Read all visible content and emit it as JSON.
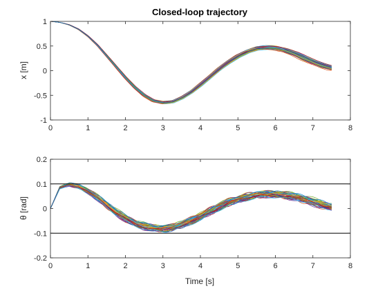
{
  "chart_data": [
    {
      "type": "line",
      "title": "Closed-loop trajectory",
      "xlabel": "",
      "ylabel": "x [m]",
      "xlim": [
        0,
        8
      ],
      "ylim": [
        -1,
        1
      ],
      "xticks": [
        0,
        1,
        2,
        3,
        4,
        5,
        6,
        7,
        8
      ],
      "yticks": [
        -1,
        -0.5,
        0,
        0.5,
        1
      ],
      "ytick_labels": [
        "-1",
        "-0.5",
        "0",
        "0.5",
        "1"
      ],
      "grid": false,
      "legend": "none",
      "ensemble": {
        "runs": 50,
        "x": [
          0,
          0.25,
          0.5,
          0.75,
          1,
          1.25,
          1.5,
          1.75,
          2,
          2.25,
          2.5,
          2.75,
          3,
          3.25,
          3.5,
          3.75,
          4,
          4.25,
          4.5,
          4.75,
          5,
          5.25,
          5.5,
          5.75,
          6,
          6.25,
          6.5,
          6.75,
          7,
          7.25,
          7.5
        ],
        "mean": [
          1.0,
          0.98,
          0.93,
          0.84,
          0.7,
          0.52,
          0.3,
          0.08,
          -0.14,
          -0.34,
          -0.5,
          -0.61,
          -0.65,
          -0.63,
          -0.55,
          -0.43,
          -0.28,
          -0.12,
          0.04,
          0.18,
          0.3,
          0.39,
          0.45,
          0.47,
          0.46,
          0.42,
          0.35,
          0.26,
          0.18,
          0.11,
          0.05
        ],
        "spread": [
          0.0,
          0.0,
          0.005,
          0.008,
          0.01,
          0.012,
          0.015,
          0.018,
          0.02,
          0.022,
          0.025,
          0.028,
          0.03,
          0.03,
          0.03,
          0.03,
          0.03,
          0.03,
          0.03,
          0.035,
          0.035,
          0.04,
          0.04,
          0.045,
          0.045,
          0.045,
          0.05,
          0.05,
          0.05,
          0.05,
          0.05
        ]
      },
      "reference_lines": []
    },
    {
      "type": "line",
      "title": "",
      "xlabel": "Time [s]",
      "ylabel": "θ [rad]",
      "xlim": [
        0,
        8
      ],
      "ylim": [
        -0.2,
        0.2
      ],
      "xticks": [
        0,
        1,
        2,
        3,
        4,
        5,
        6,
        7,
        8
      ],
      "yticks": [
        -0.2,
        -0.1,
        0,
        0.1,
        0.2
      ],
      "ytick_labels": [
        "-0.2",
        "-0.1",
        "0",
        "0.1",
        "0.2"
      ],
      "grid": false,
      "legend": "none",
      "ensemble": {
        "runs": 50,
        "x": [
          0,
          0.25,
          0.5,
          0.75,
          1,
          1.25,
          1.5,
          1.75,
          2,
          2.25,
          2.5,
          2.75,
          3,
          3.25,
          3.5,
          3.75,
          4,
          4.25,
          4.5,
          4.75,
          5,
          5.25,
          5.5,
          5.75,
          6,
          6.25,
          6.5,
          6.75,
          7,
          7.25,
          7.5
        ],
        "mean": [
          0.0,
          0.085,
          0.098,
          0.09,
          0.07,
          0.045,
          0.015,
          -0.015,
          -0.04,
          -0.06,
          -0.072,
          -0.08,
          -0.082,
          -0.078,
          -0.065,
          -0.05,
          -0.032,
          -0.012,
          0.008,
          0.025,
          0.038,
          0.048,
          0.055,
          0.058,
          0.058,
          0.055,
          0.048,
          0.038,
          0.027,
          0.015,
          0.005
        ],
        "spread": [
          0.0,
          0.004,
          0.006,
          0.008,
          0.009,
          0.01,
          0.011,
          0.012,
          0.012,
          0.012,
          0.012,
          0.012,
          0.012,
          0.012,
          0.012,
          0.012,
          0.012,
          0.012,
          0.012,
          0.012,
          0.012,
          0.012,
          0.012,
          0.012,
          0.012,
          0.012,
          0.012,
          0.012,
          0.012,
          0.012,
          0.012
        ]
      },
      "reference_lines": [
        {
          "axis": "y",
          "value": 0.1,
          "color": "#000000"
        },
        {
          "axis": "y",
          "value": -0.1,
          "color": "#000000"
        }
      ]
    }
  ],
  "palette": [
    "#0072BD",
    "#D95319",
    "#EDB120",
    "#7E2F8E",
    "#77AC30",
    "#4DBEEE",
    "#A2142F"
  ],
  "colors": {
    "axes": "#262626",
    "background": "#ffffff"
  }
}
